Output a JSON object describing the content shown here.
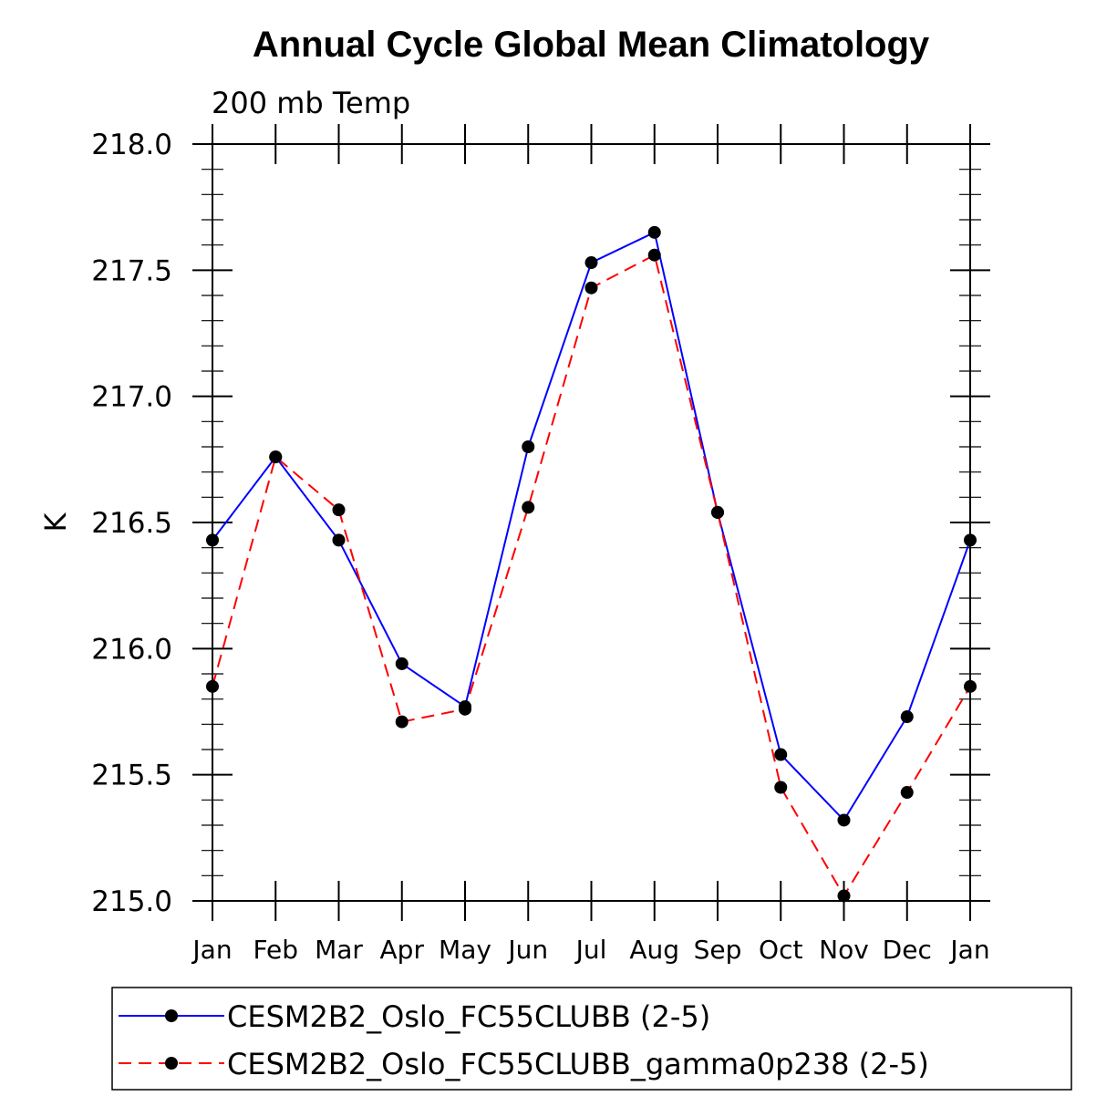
{
  "chart_data": {
    "type": "line",
    "title": "Annual Cycle Global Mean Climatology",
    "subtitle": "200 mb Temp",
    "xlabel": "",
    "ylabel": "K",
    "ylim": [
      215.0,
      218.0
    ],
    "yticks": [
      "215.0",
      "215.5",
      "216.0",
      "216.5",
      "217.0",
      "217.5",
      "218.0"
    ],
    "categories": [
      "Jan",
      "Feb",
      "Mar",
      "Apr",
      "May",
      "Jun",
      "Jul",
      "Aug",
      "Sep",
      "Oct",
      "Nov",
      "Dec",
      "Jan"
    ],
    "series": [
      {
        "name": "CESM2B2_Oslo_FC55CLUBB (2-5)",
        "color": "#0000ff",
        "dash": "solid",
        "values": [
          216.43,
          216.76,
          216.43,
          215.94,
          215.77,
          216.8,
          217.53,
          217.65,
          216.54,
          215.58,
          215.32,
          215.73,
          216.43
        ]
      },
      {
        "name": "CESM2B2_Oslo_FC55CLUBB_gamma0p238 (2-5)",
        "color": "#ff0000",
        "dash": "dashed",
        "values": [
          215.85,
          216.76,
          216.55,
          215.71,
          215.76,
          216.56,
          217.43,
          217.56,
          216.54,
          215.45,
          215.02,
          215.43,
          215.85
        ]
      }
    ],
    "legend_position": "bottom"
  }
}
